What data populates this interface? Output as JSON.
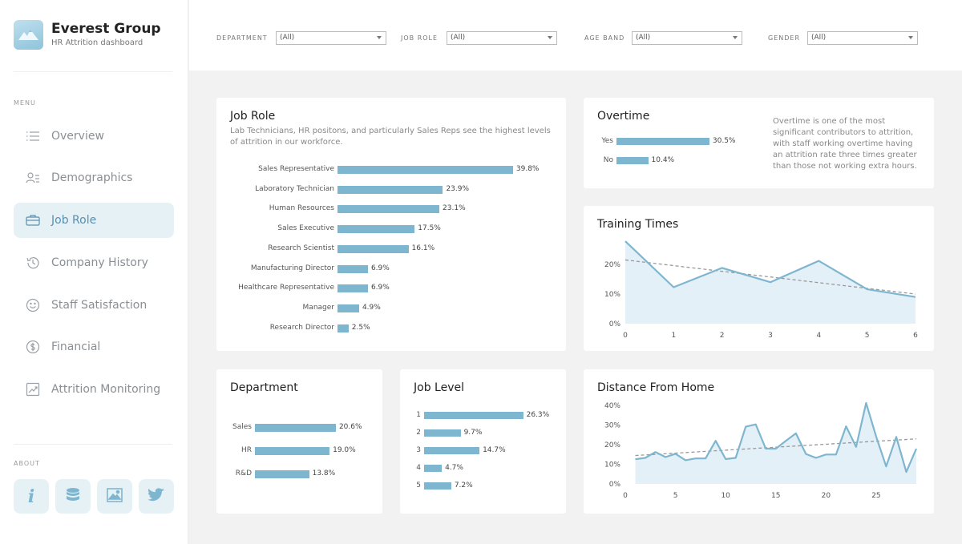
{
  "brand": {
    "title": "Everest Group",
    "subtitle": "HR Attrition dashboard"
  },
  "menu": {
    "label": "MENU",
    "items": [
      {
        "label": "Overview",
        "icon": "list-icon",
        "active": false
      },
      {
        "label": "Demographics",
        "icon": "people-icon",
        "active": false
      },
      {
        "label": "Job Role",
        "icon": "briefcase-icon",
        "active": true
      },
      {
        "label": "Company History",
        "icon": "history-icon",
        "active": false
      },
      {
        "label": "Staff Satisfaction",
        "icon": "smile-icon",
        "active": false
      },
      {
        "label": "Financial",
        "icon": "dollar-icon",
        "active": false
      },
      {
        "label": "Attrition Monitoring",
        "icon": "chart-icon",
        "active": false
      }
    ]
  },
  "about": {
    "label": "ABOUT",
    "buttons": [
      "info-icon",
      "database-icon",
      "image-icon",
      "twitter-icon"
    ]
  },
  "filters": [
    {
      "label": "DEPARTMENT",
      "value": "(All)"
    },
    {
      "label": "JOB ROLE",
      "value": "(All)"
    },
    {
      "label": "AGE BAND",
      "value": "(All)"
    },
    {
      "label": "GENDER",
      "value": "(All)"
    }
  ],
  "colors": {
    "accent": "#7fb6cf",
    "active_bg": "#e6f1f6",
    "area_fill": "#e4f0f7",
    "line": "#7fb6cf",
    "trend": "#999999"
  },
  "job_role": {
    "title": "Job Role",
    "description": "Lab Technicians, HR positons, and particularly Sales Reps see the highest levels of attrition in our workforce."
  },
  "overtime": {
    "title": "Overtime",
    "note": "Overtime is one of the most significant contributors to attrition, with staff working overtime having an attrition rate three times greater than those not working extra hours."
  },
  "training": {
    "title": "Training Times"
  },
  "department": {
    "title": "Department"
  },
  "job_level": {
    "title": "Job Level"
  },
  "distance": {
    "title": "Distance From Home"
  },
  "chart_data": [
    {
      "id": "job_role",
      "type": "bar",
      "title": "Job Role",
      "categories": [
        "Sales Representative",
        "Laboratory Technician",
        "Human Resources",
        "Sales Executive",
        "Research Scientist",
        "Manufacturing Director",
        "Healthcare Representative",
        "Manager",
        "Research Director"
      ],
      "values": [
        39.8,
        23.9,
        23.1,
        17.5,
        16.1,
        6.9,
        6.9,
        4.9,
        2.5
      ],
      "labels": [
        "39.8%",
        "23.9%",
        "23.1%",
        "17.5%",
        "16.1%",
        "6.9%",
        "6.9%",
        "4.9%",
        "2.5%"
      ]
    },
    {
      "id": "overtime",
      "type": "bar",
      "title": "Overtime",
      "categories": [
        "Yes",
        "No"
      ],
      "values": [
        30.5,
        10.4
      ],
      "labels": [
        "30.5%",
        "10.4%"
      ]
    },
    {
      "id": "department",
      "type": "bar",
      "title": "Department",
      "categories": [
        "Sales",
        "HR",
        "R&D"
      ],
      "values": [
        20.6,
        19.0,
        13.8
      ],
      "labels": [
        "20.6%",
        "19.0%",
        "13.8%"
      ]
    },
    {
      "id": "job_level",
      "type": "bar",
      "title": "Job Level",
      "categories": [
        "1",
        "2",
        "3",
        "4",
        "5"
      ],
      "values": [
        26.3,
        9.7,
        14.7,
        4.7,
        7.2
      ],
      "labels": [
        "26.3%",
        "9.7%",
        "14.7%",
        "4.7%",
        "7.2%"
      ]
    },
    {
      "id": "training",
      "type": "area",
      "title": "Training Times",
      "x": [
        0,
        1,
        2,
        3,
        4,
        5,
        6
      ],
      "values": [
        27.8,
        12.3,
        18.8,
        14.0,
        21.2,
        11.6,
        9.0
      ],
      "trend": [
        21.5,
        10.0
      ],
      "xlim": [
        0,
        6
      ],
      "ylim": [
        0,
        30
      ],
      "xticks": [
        0,
        1,
        2,
        3,
        4,
        5,
        6
      ],
      "yticks": [
        0,
        10,
        20
      ],
      "ytick_labels": [
        "0%",
        "10%",
        "20%"
      ]
    },
    {
      "id": "distance",
      "type": "area",
      "title": "Distance From Home",
      "x": [
        1,
        2,
        3,
        4,
        5,
        6,
        7,
        8,
        9,
        10,
        11,
        12,
        13,
        14,
        15,
        16,
        17,
        18,
        19,
        20,
        21,
        22,
        23,
        24,
        25,
        26,
        27,
        28,
        29
      ],
      "values": [
        12.6,
        13.3,
        16.3,
        13.7,
        15.4,
        12.1,
        13.0,
        13.0,
        22.0,
        12.7,
        13.3,
        29.2,
        30.4,
        18.0,
        18.0,
        22.0,
        25.8,
        15.3,
        13.3,
        15.0,
        15.0,
        29.4,
        18.9,
        41.3,
        24.2,
        8.9,
        24.0,
        6.1,
        18.0
      ],
      "trend": [
        14.5,
        23.0
      ],
      "xlim": [
        0,
        29
      ],
      "ylim": [
        0,
        45
      ],
      "xticks": [
        0,
        5,
        10,
        15,
        20,
        25
      ],
      "yticks": [
        0,
        10,
        20,
        30,
        40
      ],
      "ytick_labels": [
        "0%",
        "10%",
        "20%",
        "30%",
        "40%"
      ]
    }
  ]
}
